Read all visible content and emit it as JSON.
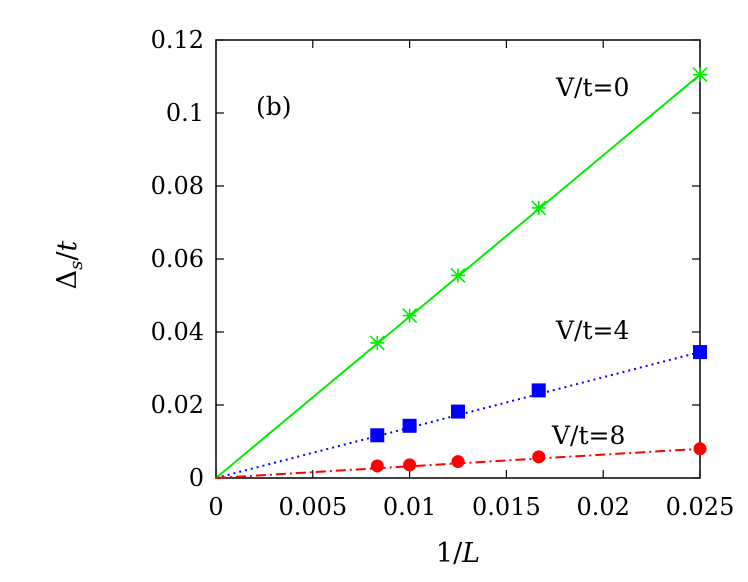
{
  "chart_data": {
    "type": "scatter",
    "panel_label": "(b)",
    "xlabel": "1/L",
    "ylabel": "Δs/t",
    "xlim": [
      0,
      0.025
    ],
    "ylim": [
      0,
      0.12
    ],
    "x_ticks": [
      0,
      0.005,
      0.01,
      0.015,
      0.02,
      0.025
    ],
    "x_tick_labels": [
      "0",
      "0.005",
      "0.01",
      "0.015",
      "0.02",
      "0.025"
    ],
    "y_ticks": [
      0,
      0.02,
      0.04,
      0.06,
      0.08,
      0.1,
      0.12
    ],
    "y_tick_labels": [
      "0",
      "0.02",
      "0.04",
      "0.06",
      "0.08",
      "0.1",
      "0.12"
    ],
    "grid": false,
    "series": [
      {
        "name": "V/t=0",
        "color": "#00ee00",
        "marker": "star",
        "line_style": "solid",
        "x": [
          0.00833,
          0.01,
          0.0125,
          0.01667,
          0.025
        ],
        "y": [
          0.037,
          0.0445,
          0.0555,
          0.074,
          0.1105
        ],
        "fit": {
          "x": [
            0,
            0.025
          ],
          "y": [
            0.0,
            0.1105
          ]
        }
      },
      {
        "name": "V/t=4",
        "color": "#0000ff",
        "marker": "square",
        "line_style": "dotted",
        "x": [
          0.00833,
          0.01,
          0.0125,
          0.01667,
          0.025
        ],
        "y": [
          0.0117,
          0.0143,
          0.0182,
          0.024,
          0.0345
        ],
        "fit": {
          "x": [
            0,
            0.025
          ],
          "y": [
            0.0,
            0.0345
          ]
        }
      },
      {
        "name": "V/t=8",
        "color": "#ff0000",
        "marker": "circle",
        "line_style": "dashdot",
        "x": [
          0.00833,
          0.01,
          0.0125,
          0.01667,
          0.025
        ],
        "y": [
          0.0033,
          0.0036,
          0.0045,
          0.0058,
          0.008
        ],
        "fit": {
          "x": [
            0,
            0.025
          ],
          "y": [
            0.0,
            0.008
          ]
        }
      }
    ]
  }
}
